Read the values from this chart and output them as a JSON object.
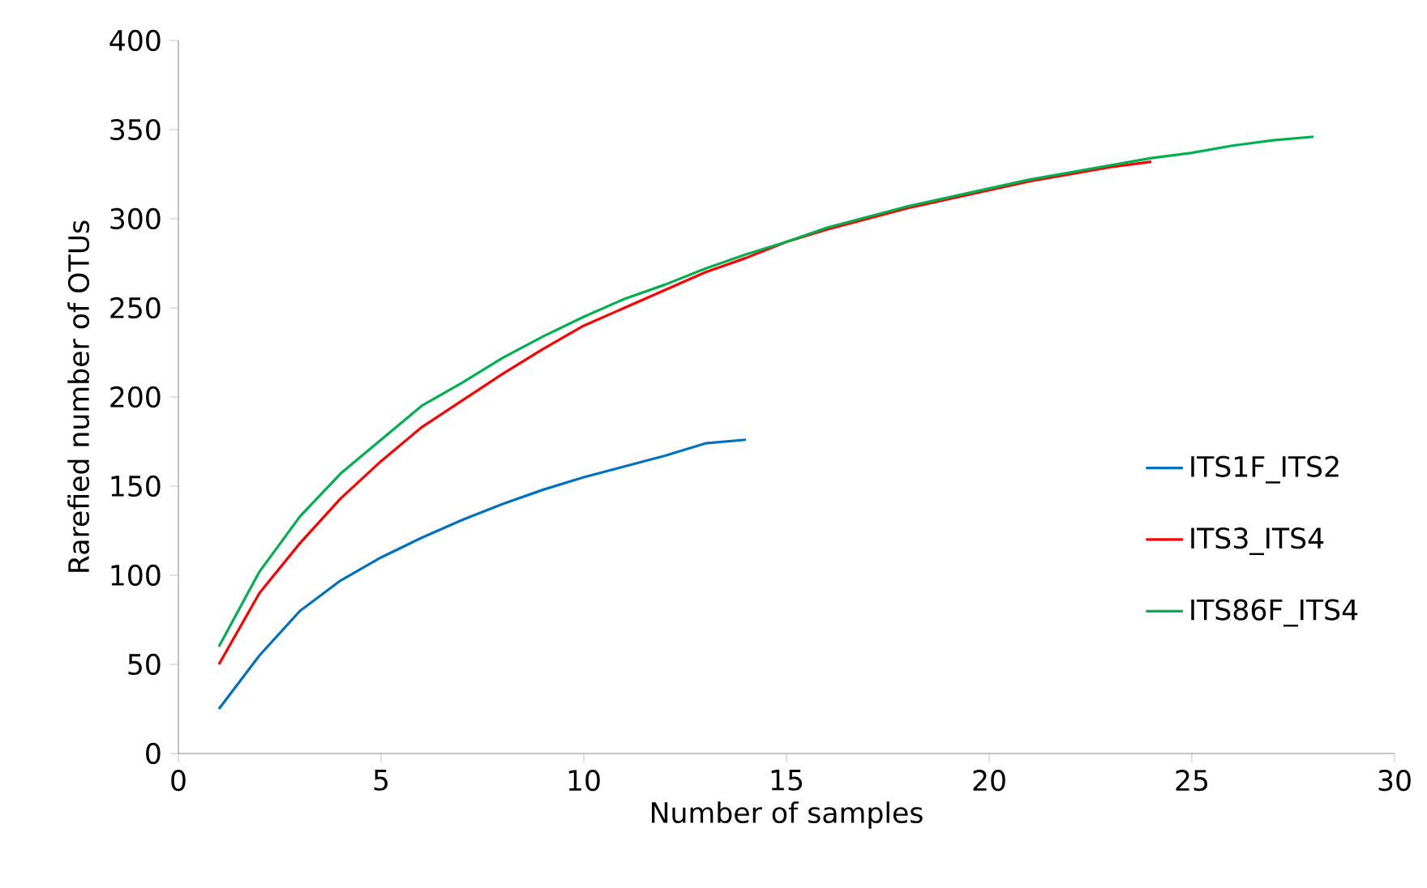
{
  "chart_data": {
    "type": "line",
    "xlabel": "Number of samples",
    "ylabel": "Rarefied number of OTUs",
    "xlim": [
      0,
      30
    ],
    "xticks": [
      0,
      5,
      10,
      15,
      20,
      25,
      30
    ],
    "ylim": [
      0,
      400
    ],
    "yticks": [
      0,
      50,
      100,
      150,
      200,
      250,
      300,
      350,
      400
    ],
    "grid": false,
    "legend": "right",
    "marker": "none",
    "line_style": "solid",
    "series": [
      {
        "name": "ITS1F_ITS2",
        "color": "#0070c0",
        "x": [
          1,
          2,
          3,
          4,
          5,
          6,
          7,
          8,
          9,
          10,
          11,
          12,
          13,
          14
        ],
        "values": [
          25,
          55,
          80,
          97,
          110,
          121,
          131,
          140,
          148,
          155,
          161,
          167,
          174,
          176
        ]
      },
      {
        "name": "ITS3_ITS4",
        "color": "#ff0000",
        "x": [
          1,
          2,
          3,
          4,
          5,
          6,
          7,
          8,
          9,
          10,
          11,
          12,
          13,
          14,
          15,
          16,
          17,
          18,
          19,
          20,
          21,
          22,
          23,
          24
        ],
        "values": [
          50,
          90,
          118,
          143,
          164,
          183,
          198,
          213,
          227,
          240,
          250,
          260,
          270,
          278,
          287,
          294,
          300,
          306,
          311,
          316,
          321,
          325,
          329,
          332
        ]
      },
      {
        "name": "ITS86F_ITS4",
        "color": "#00b050",
        "x": [
          1,
          2,
          3,
          4,
          5,
          6,
          7,
          8,
          9,
          10,
          11,
          12,
          13,
          14,
          15,
          16,
          17,
          18,
          19,
          20,
          21,
          22,
          23,
          24,
          25,
          26,
          27,
          28
        ],
        "values": [
          60,
          102,
          133,
          157,
          176,
          195,
          208,
          222,
          234,
          245,
          255,
          263,
          272,
          280,
          287,
          295,
          301,
          307,
          312,
          317,
          322,
          326,
          330,
          334,
          337,
          341,
          344,
          346
        ]
      }
    ]
  }
}
